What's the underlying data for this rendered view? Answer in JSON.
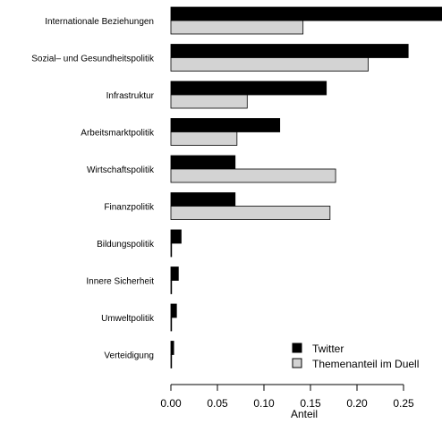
{
  "chart_data": {
    "type": "bar",
    "orientation": "horizontal",
    "categories": [
      "Internationale Beziehungen",
      "Sozial– und Gesundheitspolitik",
      "Infrastruktur",
      "Arbeitsmarktpolitik",
      "Wirtschaftspolitik",
      "Finanzpolitik",
      "Bildungspolitik",
      "Innere Sicherheit",
      "Umweltpolitik",
      "Verteidigung"
    ],
    "series": [
      {
        "name": "Twitter",
        "color": "#000000",
        "values": [
          0.295,
          0.255,
          0.167,
          0.117,
          0.069,
          0.069,
          0.011,
          0.008,
          0.006,
          0.003
        ]
      },
      {
        "name": "Themenanteil im Duell",
        "color": "#d3d3d3",
        "values": [
          0.142,
          0.212,
          0.082,
          0.071,
          0.177,
          0.171,
          0.0005,
          0.0005,
          0.0005,
          0.0005
        ]
      }
    ],
    "xlabel": "Anteil",
    "xticks": [
      "0.00",
      "0.05",
      "0.10",
      "0.15",
      "0.20",
      "0.25"
    ],
    "xlim": [
      0,
      0.29
    ],
    "legend": "bottom-right"
  }
}
